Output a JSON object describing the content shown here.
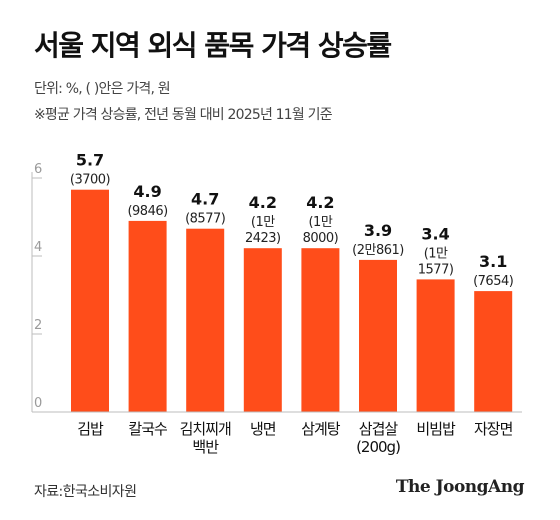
{
  "title": "서울 지역 외식 품목 가격 상승률",
  "unit_note": "단위: %, ( )안은 가격, 원",
  "note": "※평균 가격 상승률, 전년 동월 대비 2025년 11월 기준",
  "source": "자료:한국소비자원",
  "brand": "The JoongAng",
  "colors": {
    "bar": "#ff4d1a",
    "axis": "#bdbdbd",
    "tick_text": "#9a9a9a"
  },
  "chart_data": {
    "type": "bar",
    "title": "서울 지역 외식 품목 가격 상승률",
    "ylim": [
      0,
      6
    ],
    "yticks": [
      0,
      2,
      4,
      6
    ],
    "grid": false,
    "categories": [
      [
        "김밥"
      ],
      [
        "칼국수"
      ],
      [
        "김치찌개",
        "백반"
      ],
      [
        "냉면"
      ],
      [
        "삼계탕"
      ],
      [
        "삼겹살",
        "(200g)"
      ],
      [
        "비빔밥"
      ],
      [
        "자장면"
      ]
    ],
    "values": [
      5.7,
      4.9,
      4.7,
      4.2,
      4.2,
      3.9,
      3.4,
      3.1
    ],
    "value_labels": [
      "5.7",
      "4.9",
      "4.7",
      "4.2",
      "4.2",
      "3.9",
      "3.4",
      "3.1"
    ],
    "price_labels": [
      [
        "(3700)"
      ],
      [
        "(9846)"
      ],
      [
        "(8577)"
      ],
      [
        "(1만",
        "2423)"
      ],
      [
        "(1만",
        "8000)"
      ],
      [
        "(2만861)"
      ],
      [
        "(1만",
        "1577)"
      ],
      [
        "(7654)"
      ]
    ]
  }
}
